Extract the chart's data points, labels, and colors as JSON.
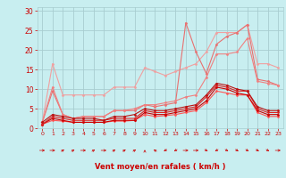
{
  "bg_color": "#c8eef0",
  "grid_color": "#a8cdd0",
  "xlabel": "Vent moyen/en rafales ( km/h )",
  "xlabel_color": "#cc0000",
  "xlim": [
    -0.5,
    23.5
  ],
  "ylim": [
    0,
    31
  ],
  "yticks": [
    0,
    5,
    10,
    15,
    20,
    25,
    30
  ],
  "xticks": [
    0,
    1,
    2,
    3,
    4,
    5,
    6,
    7,
    8,
    9,
    10,
    11,
    12,
    13,
    14,
    15,
    16,
    17,
    18,
    19,
    20,
    21,
    22,
    23
  ],
  "series": [
    {
      "x": [
        0,
        1,
        2,
        3,
        4,
        5,
        6,
        7,
        8,
        9,
        10,
        11,
        12,
        13,
        14,
        15,
        16,
        17,
        18,
        19,
        20,
        21,
        22,
        23
      ],
      "y": [
        1.5,
        16.5,
        8.5,
        8.5,
        8.5,
        8.5,
        8.5,
        10.5,
        10.5,
        10.5,
        15.5,
        14.5,
        13.5,
        14.5,
        15.5,
        16.5,
        19.5,
        24.5,
        24.5,
        24.5,
        26.5,
        16.5,
        16.5,
        15.5
      ],
      "color": "#f0a0a0",
      "lw": 0.8,
      "marker": "D",
      "ms": 1.5,
      "zorder": 2
    },
    {
      "x": [
        0,
        1,
        2,
        3,
        4,
        5,
        6,
        7,
        8,
        9,
        10,
        11,
        12,
        13,
        14,
        15,
        16,
        17,
        18,
        19,
        20,
        21,
        22,
        23
      ],
      "y": [
        1.5,
        9.5,
        3.5,
        2.5,
        3.0,
        3.0,
        3.0,
        4.5,
        4.5,
        4.5,
        6.0,
        5.5,
        6.0,
        6.5,
        27.0,
        19.5,
        14.0,
        21.5,
        23.5,
        24.5,
        26.5,
        12.5,
        12.0,
        11.0
      ],
      "color": "#e87070",
      "lw": 0.8,
      "marker": "D",
      "ms": 1.5,
      "zorder": 2
    },
    {
      "x": [
        0,
        1,
        2,
        3,
        4,
        5,
        6,
        7,
        8,
        9,
        10,
        11,
        12,
        13,
        14,
        15,
        16,
        17,
        18,
        19,
        20,
        21,
        22,
        23
      ],
      "y": [
        1.5,
        10.5,
        3.5,
        2.5,
        3.0,
        3.0,
        3.0,
        4.5,
        4.5,
        5.0,
        6.0,
        6.0,
        6.5,
        7.0,
        8.0,
        8.5,
        13.0,
        19.0,
        19.0,
        19.5,
        23.0,
        12.0,
        11.5,
        11.0
      ],
      "color": "#f08080",
      "lw": 0.8,
      "marker": "D",
      "ms": 1.5,
      "zorder": 2
    },
    {
      "x": [
        0,
        1,
        2,
        3,
        4,
        5,
        6,
        7,
        8,
        9,
        10,
        11,
        12,
        13,
        14,
        15,
        16,
        17,
        18,
        19,
        20,
        21,
        22,
        23
      ],
      "y": [
        1.0,
        2.0,
        1.8,
        1.5,
        1.5,
        1.5,
        1.5,
        1.8,
        1.8,
        2.0,
        3.5,
        3.0,
        3.2,
        3.5,
        4.0,
        4.5,
        6.5,
        9.5,
        9.0,
        8.5,
        8.5,
        4.0,
        3.0,
        3.0
      ],
      "color": "#ff5555",
      "lw": 0.8,
      "marker": "D",
      "ms": 1.5,
      "zorder": 2
    },
    {
      "x": [
        0,
        1,
        2,
        3,
        4,
        5,
        6,
        7,
        8,
        9,
        10,
        11,
        12,
        13,
        14,
        15,
        16,
        17,
        18,
        19,
        20,
        21,
        22,
        23
      ],
      "y": [
        1.0,
        2.5,
        2.0,
        1.5,
        1.5,
        1.5,
        1.5,
        2.0,
        2.0,
        2.0,
        4.0,
        3.5,
        3.5,
        4.0,
        4.5,
        5.0,
        7.0,
        10.5,
        10.0,
        9.0,
        8.5,
        4.5,
        3.5,
        3.5
      ],
      "color": "#cc0000",
      "lw": 0.8,
      "marker": "D",
      "ms": 1.5,
      "zorder": 3
    },
    {
      "x": [
        0,
        1,
        2,
        3,
        4,
        5,
        6,
        7,
        8,
        9,
        10,
        11,
        12,
        13,
        14,
        15,
        16,
        17,
        18,
        19,
        20,
        21,
        22,
        23
      ],
      "y": [
        1.0,
        3.0,
        2.5,
        2.0,
        2.0,
        2.0,
        2.0,
        2.5,
        2.5,
        2.5,
        4.5,
        4.0,
        4.0,
        4.5,
        5.0,
        5.5,
        8.0,
        11.0,
        10.5,
        9.5,
        9.5,
        5.0,
        4.0,
        4.0
      ],
      "color": "#dd2222",
      "lw": 0.8,
      "marker": "D",
      "ms": 1.5,
      "zorder": 3
    },
    {
      "x": [
        0,
        1,
        2,
        3,
        4,
        5,
        6,
        7,
        8,
        9,
        10,
        11,
        12,
        13,
        14,
        15,
        16,
        17,
        18,
        19,
        20,
        21,
        22,
        23
      ],
      "y": [
        1.5,
        3.5,
        3.0,
        2.5,
        2.5,
        2.5,
        2.0,
        3.0,
        3.0,
        3.5,
        5.0,
        4.5,
        4.5,
        5.0,
        5.5,
        6.0,
        8.5,
        11.5,
        11.0,
        10.0,
        9.5,
        5.5,
        4.5,
        4.5
      ],
      "color": "#bb1111",
      "lw": 0.8,
      "marker": "D",
      "ms": 1.5,
      "zorder": 3
    }
  ],
  "wind_arrows": {
    "x": [
      0,
      1,
      2,
      3,
      4,
      5,
      6,
      7,
      8,
      9,
      10,
      11,
      12,
      13,
      14,
      15,
      16,
      17,
      18,
      19,
      20,
      21,
      22,
      23
    ],
    "angles_deg": [
      270,
      270,
      225,
      225,
      270,
      225,
      270,
      225,
      225,
      225,
      180,
      135,
      45,
      45,
      270,
      270,
      315,
      45,
      315,
      315,
      315,
      315,
      315,
      270
    ],
    "color": "#cc0000"
  },
  "tick_color": "#cc0000",
  "xtick_fontsize": 4.5,
  "ytick_fontsize": 5.5,
  "xlabel_fontsize": 6.0
}
